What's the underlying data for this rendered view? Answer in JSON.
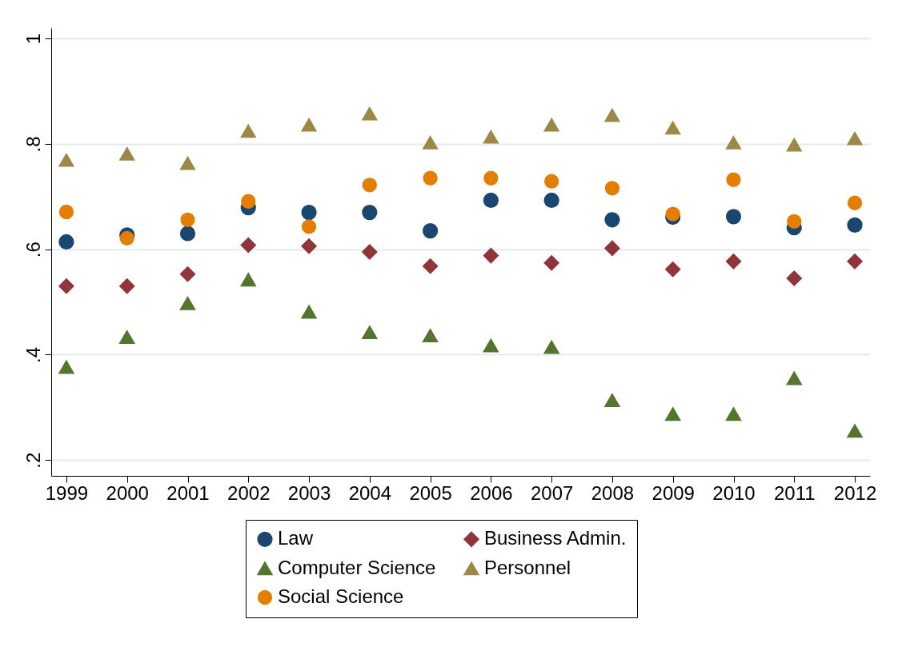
{
  "chart_data": {
    "type": "scatter",
    "x": [
      1999,
      2000,
      2001,
      2002,
      2003,
      2004,
      2005,
      2006,
      2007,
      2008,
      2009,
      2010,
      2011,
      2012
    ],
    "series": [
      {
        "name": "Law",
        "color": "#1a476f",
        "marker": "circle",
        "values": [
          0.614,
          0.627,
          0.63,
          0.679,
          0.67,
          0.67,
          0.635,
          0.693,
          0.693,
          0.656,
          0.661,
          0.662,
          0.641,
          0.646
        ]
      },
      {
        "name": "Business Admin.",
        "color": "#90353b",
        "marker": "diamond",
        "values": [
          0.53,
          0.53,
          0.553,
          0.608,
          0.606,
          0.595,
          0.568,
          0.588,
          0.574,
          0.602,
          0.562,
          0.577,
          0.545,
          0.577
        ]
      },
      {
        "name": "Computer Science",
        "color": "#55752f",
        "marker": "triangle",
        "values": [
          0.376,
          0.433,
          0.497,
          0.542,
          0.481,
          0.442,
          0.436,
          0.417,
          0.414,
          0.313,
          0.287,
          0.287,
          0.355,
          0.255
        ]
      },
      {
        "name": "Personnel",
        "color": "#9c8847",
        "marker": "triangle",
        "values": [
          0.769,
          0.781,
          0.763,
          0.824,
          0.836,
          0.857,
          0.802,
          0.813,
          0.836,
          0.854,
          0.83,
          0.802,
          0.798,
          0.81
        ]
      },
      {
        "name": "Social Science",
        "color": "#e37e00",
        "marker": "circle",
        "values": [
          0.671,
          0.621,
          0.656,
          0.691,
          0.643,
          0.722,
          0.735,
          0.735,
          0.729,
          0.716,
          0.667,
          0.732,
          0.653,
          0.688
        ]
      }
    ],
    "xlim": [
      1998.75,
      2012.25
    ],
    "xticks": [
      1999,
      2000,
      2001,
      2002,
      2003,
      2004,
      2005,
      2006,
      2007,
      2008,
      2009,
      2010,
      2011,
      2012
    ],
    "ylim": [
      0.17,
      1.02
    ],
    "yticks": [
      {
        "value": 0.2,
        "label": ".2"
      },
      {
        "value": 0.4,
        "label": ".4"
      },
      {
        "value": 0.6,
        "label": ".6"
      },
      {
        "value": 0.8,
        "label": ".8"
      },
      {
        "value": 1,
        "label": "1"
      }
    ],
    "grid": "y",
    "legend": "bottom"
  }
}
